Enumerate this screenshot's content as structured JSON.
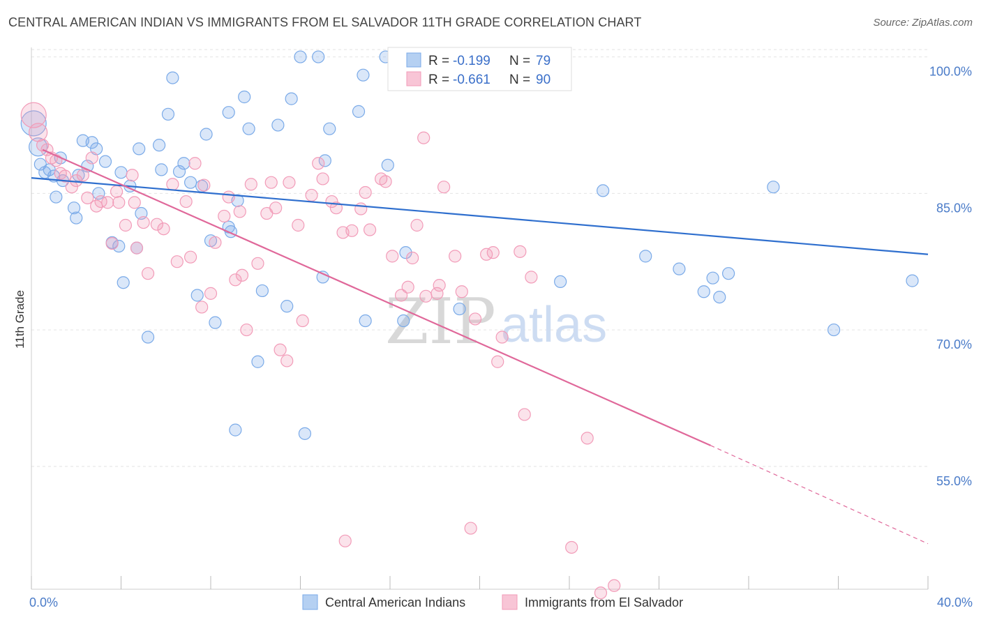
{
  "title": "CENTRAL AMERICAN INDIAN VS IMMIGRANTS FROM EL SALVADOR 11TH GRADE CORRELATION CHART",
  "source": "Source: ZipAtlas.com",
  "watermark": {
    "zip": "ZIP",
    "atlas": "atlas"
  },
  "colors": {
    "blue": "#7aaae8",
    "blue_line": "#2f6fce",
    "pink": "#f29bb8",
    "pink_line": "#e0689a",
    "tick": "#4a7bc8"
  },
  "chart_data": {
    "type": "scatter",
    "xlabel": "",
    "ylabel": "11th Grade",
    "xlim": [
      0,
      40
    ],
    "ylim": [
      41.5,
      101.5
    ],
    "x_ticks": [
      {
        "value": 0,
        "label": "0.0%"
      },
      {
        "value": 40,
        "label": "40.0%"
      }
    ],
    "y_ticks": [
      {
        "value": 55,
        "label": "55.0%"
      },
      {
        "value": 70,
        "label": "70.0%"
      },
      {
        "value": 85,
        "label": "85.0%"
      },
      {
        "value": 100,
        "label": "100.0%"
      }
    ],
    "grid": true,
    "legend": {
      "placement": "top-center",
      "entries": [
        {
          "r_label": "R =",
          "r": "-0.199",
          "n_label": "N =",
          "n": "79"
        },
        {
          "r_label": "R =",
          "r": "-0.661",
          "n_label": "N =",
          "n": "90"
        }
      ]
    },
    "series": [
      {
        "name": "Central American Indians",
        "color": "#7aaae8",
        "trend": {
          "x1": 0,
          "y1": 86.7,
          "x2": 40,
          "y2": 78.3
        },
        "points": [
          [
            0.1,
            92.7
          ],
          [
            0.3,
            90.1
          ],
          [
            0.4,
            88.2
          ],
          [
            0.6,
            87.3
          ],
          [
            0.8,
            87.6
          ],
          [
            1.0,
            86.9
          ],
          [
            1.1,
            84.6
          ],
          [
            1.3,
            88.9
          ],
          [
            1.4,
            86.4
          ],
          [
            1.9,
            83.4
          ],
          [
            2.0,
            82.3
          ],
          [
            2.3,
            90.8
          ],
          [
            2.5,
            88.0
          ],
          [
            2.7,
            90.6
          ],
          [
            2.9,
            89.9
          ],
          [
            3.3,
            88.5
          ],
          [
            3.6,
            79.6
          ],
          [
            3.9,
            79.2
          ],
          [
            4.0,
            87.3
          ],
          [
            4.1,
            75.2
          ],
          [
            4.4,
            85.8
          ],
          [
            4.7,
            79.0
          ],
          [
            4.8,
            89.9
          ],
          [
            4.9,
            82.8
          ],
          [
            5.2,
            69.2
          ],
          [
            5.7,
            90.3
          ],
          [
            5.8,
            87.6
          ],
          [
            6.1,
            93.7
          ],
          [
            6.3,
            97.7
          ],
          [
            6.6,
            87.4
          ],
          [
            6.8,
            88.3
          ],
          [
            7.1,
            86.2
          ],
          [
            7.4,
            73.8
          ],
          [
            7.6,
            85.8
          ],
          [
            7.8,
            91.5
          ],
          [
            8.0,
            79.8
          ],
          [
            8.2,
            70.8
          ],
          [
            8.8,
            81.3
          ],
          [
            8.8,
            93.9
          ],
          [
            8.9,
            80.8
          ],
          [
            9.1,
            59.0
          ],
          [
            9.2,
            84.2
          ],
          [
            9.5,
            95.6
          ],
          [
            9.7,
            92.1
          ],
          [
            10.1,
            66.5
          ],
          [
            10.3,
            74.3
          ],
          [
            11.0,
            92.5
          ],
          [
            11.4,
            72.6
          ],
          [
            11.6,
            95.4
          ],
          [
            12.0,
            100.0
          ],
          [
            12.2,
            58.6
          ],
          [
            12.8,
            100.0
          ],
          [
            13.0,
            75.8
          ],
          [
            13.1,
            88.6
          ],
          [
            13.3,
            92.1
          ],
          [
            14.6,
            94.0
          ],
          [
            14.8,
            98.0
          ],
          [
            14.9,
            71.0
          ],
          [
            15.8,
            100.0
          ],
          [
            15.9,
            88.1
          ],
          [
            16.6,
            71.0
          ],
          [
            16.7,
            78.5
          ],
          [
            17.5,
            97.5
          ],
          [
            19.1,
            72.3
          ],
          [
            20.8,
            100.0
          ],
          [
            22.0,
            100.0
          ],
          [
            23.6,
            75.3
          ],
          [
            25.5,
            85.3
          ],
          [
            27.4,
            78.1
          ],
          [
            28.9,
            76.7
          ],
          [
            30.0,
            74.2
          ],
          [
            30.4,
            75.7
          ],
          [
            30.7,
            73.6
          ],
          [
            31.1,
            76.2
          ],
          [
            33.1,
            85.7
          ],
          [
            35.8,
            70.0
          ],
          [
            39.3,
            75.4
          ],
          [
            2.1,
            87.0
          ],
          [
            3.0,
            85.0
          ]
        ]
      },
      {
        "name": "Immigrants from El Salvador",
        "color": "#f29bb8",
        "trend": {
          "x1": 0.5,
          "y1": 89.8,
          "x2": 30.3,
          "y2": 57.3,
          "dash_to_x": 40,
          "dash_to_y": 46.5
        },
        "points": [
          [
            0.1,
            93.6
          ],
          [
            0.3,
            91.7
          ],
          [
            0.5,
            90.3
          ],
          [
            0.7,
            89.8
          ],
          [
            0.9,
            88.9
          ],
          [
            1.1,
            88.6
          ],
          [
            1.3,
            87.2
          ],
          [
            1.5,
            86.9
          ],
          [
            1.8,
            85.7
          ],
          [
            2.0,
            86.4
          ],
          [
            2.3,
            87.0
          ],
          [
            2.5,
            84.5
          ],
          [
            2.7,
            88.9
          ],
          [
            2.9,
            83.6
          ],
          [
            3.1,
            84.1
          ],
          [
            3.4,
            84.0
          ],
          [
            3.6,
            79.5
          ],
          [
            3.8,
            85.2
          ],
          [
            3.9,
            84.0
          ],
          [
            4.2,
            81.5
          ],
          [
            4.5,
            87.0
          ],
          [
            4.6,
            84.0
          ],
          [
            4.7,
            79.0
          ],
          [
            5.0,
            81.8
          ],
          [
            5.2,
            76.2
          ],
          [
            5.6,
            81.6
          ],
          [
            5.9,
            81.1
          ],
          [
            6.3,
            86.0
          ],
          [
            6.5,
            77.5
          ],
          [
            6.9,
            84.1
          ],
          [
            7.1,
            78.0
          ],
          [
            7.3,
            88.3
          ],
          [
            7.6,
            72.5
          ],
          [
            7.7,
            85.9
          ],
          [
            8.0,
            74.0
          ],
          [
            8.2,
            79.6
          ],
          [
            8.6,
            82.5
          ],
          [
            8.8,
            84.6
          ],
          [
            9.1,
            75.5
          ],
          [
            9.3,
            83.0
          ],
          [
            9.4,
            76.0
          ],
          [
            9.6,
            70.0
          ],
          [
            9.8,
            86.0
          ],
          [
            10.1,
            77.3
          ],
          [
            10.5,
            82.8
          ],
          [
            10.7,
            86.2
          ],
          [
            10.9,
            83.4
          ],
          [
            11.1,
            67.8
          ],
          [
            11.4,
            66.6
          ],
          [
            11.5,
            86.2
          ],
          [
            11.9,
            81.5
          ],
          [
            12.1,
            71.0
          ],
          [
            12.5,
            84.8
          ],
          [
            12.8,
            88.3
          ],
          [
            13.0,
            86.6
          ],
          [
            13.4,
            84.1
          ],
          [
            13.6,
            83.4
          ],
          [
            13.9,
            80.7
          ],
          [
            14.3,
            80.9
          ],
          [
            14.7,
            83.3
          ],
          [
            14.9,
            85.1
          ],
          [
            15.1,
            81.0
          ],
          [
            15.6,
            86.6
          ],
          [
            15.8,
            86.3
          ],
          [
            16.1,
            78.1
          ],
          [
            16.5,
            73.8
          ],
          [
            16.8,
            74.7
          ],
          [
            17.0,
            77.9
          ],
          [
            17.2,
            81.5
          ],
          [
            17.5,
            91.1
          ],
          [
            17.6,
            73.7
          ],
          [
            18.1,
            74.0
          ],
          [
            18.2,
            74.9
          ],
          [
            18.4,
            85.7
          ],
          [
            18.9,
            78.1
          ],
          [
            19.2,
            74.2
          ],
          [
            19.6,
            48.2
          ],
          [
            19.8,
            71.2
          ],
          [
            20.3,
            78.3
          ],
          [
            20.6,
            78.5
          ],
          [
            20.8,
            66.5
          ],
          [
            21.0,
            69.2
          ],
          [
            21.8,
            78.6
          ],
          [
            22.0,
            60.7
          ],
          [
            22.3,
            75.8
          ],
          [
            24.1,
            46.1
          ],
          [
            24.8,
            58.1
          ],
          [
            25.4,
            41.1
          ],
          [
            26.0,
            41.9
          ],
          [
            14.0,
            46.8
          ]
        ]
      }
    ]
  }
}
